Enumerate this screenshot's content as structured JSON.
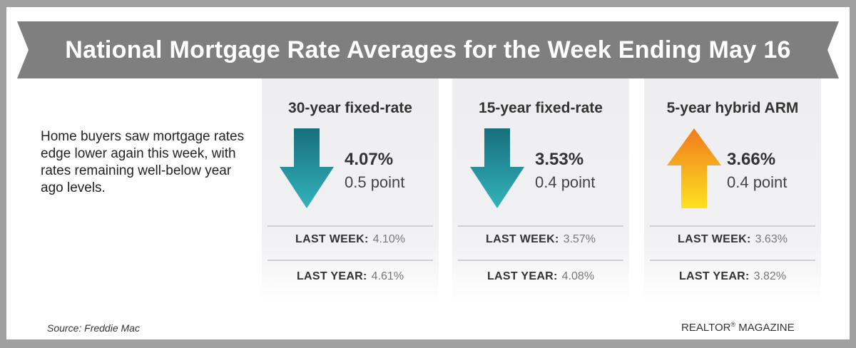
{
  "title": "National Mortgage Rate Averages for the Week Ending May 16",
  "intro": "Home buyers saw mortgage rates edge lower again this week, with rates remaining well-below year ago levels.",
  "panels": [
    {
      "label": "30-year fixed-rate",
      "direction": "down",
      "rate": "4.07%",
      "change": "0.5 point",
      "last_week_label": "LAST WEEK:",
      "last_week": "4.10%",
      "last_year_label": "LAST YEAR:",
      "last_year": "4.61%"
    },
    {
      "label": "15-year fixed-rate",
      "direction": "down",
      "rate": "3.53%",
      "change": "0.4 point",
      "last_week_label": "LAST WEEK:",
      "last_week": "3.57%",
      "last_year_label": "LAST YEAR:",
      "last_year": "4.08%"
    },
    {
      "label": "5-year hybrid ARM",
      "direction": "up",
      "rate": "3.66%",
      "change": "0.4 point",
      "last_week_label": "LAST WEEK:",
      "last_week": "3.63%",
      "last_year_label": "LAST YEAR:",
      "last_year": "3.82%"
    }
  ],
  "source": "Source: Freddie Mac",
  "brand": "REALTOR",
  "brand_mark": "®",
  "brand_suffix": " MAGAZINE",
  "colors": {
    "banner": "#7f7f80",
    "down_arrow_top": "#176f7c",
    "down_arrow_bottom": "#33b3bc",
    "up_arrow_top": "#f07a1e",
    "up_arrow_bottom": "#fde21f"
  }
}
